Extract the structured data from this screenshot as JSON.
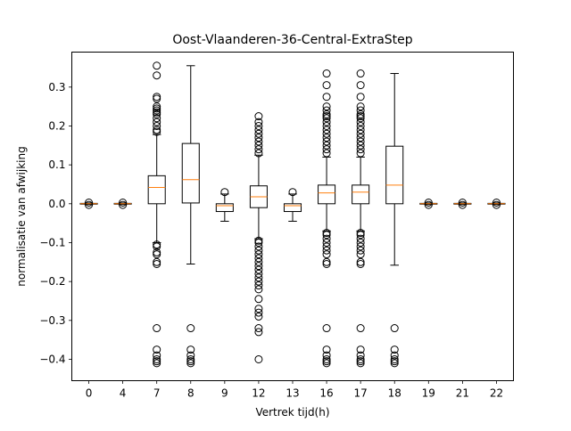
{
  "chart_data": {
    "type": "boxplot",
    "title": "Oost-Vlaanderen-36-Central-ExtraStep",
    "xlabel": "Vertrek tijd(h)",
    "ylabel": "normalisatie van afwijking",
    "ylim": [
      -0.455,
      0.39
    ],
    "yticks": [
      -0.4,
      -0.3,
      -0.2,
      -0.1,
      0.0,
      0.1,
      0.2,
      0.3
    ],
    "ytick_labels": [
      "−0.4",
      "−0.3",
      "−0.2",
      "−0.1",
      "0.0",
      "0.1",
      "0.2",
      "0.3"
    ],
    "box_color": "#000000",
    "median_color": "#ff7f0e",
    "boxes": [
      {
        "label": "0",
        "whislo": -0.002,
        "q1": -0.001,
        "med": 0.0,
        "q3": 0.001,
        "whishi": 0.002,
        "fliers": [
          -0.003,
          0.003
        ]
      },
      {
        "label": "4",
        "whislo": -0.002,
        "q1": -0.001,
        "med": 0.0,
        "q3": 0.001,
        "whishi": 0.002,
        "fliers": [
          -0.003,
          0.003
        ]
      },
      {
        "label": "7",
        "whislo": -0.1,
        "q1": 0.0,
        "med": 0.042,
        "q3": 0.072,
        "whishi": 0.178,
        "fliers": [
          0.355,
          0.33,
          0.275,
          0.27,
          0.25,
          0.245,
          0.24,
          0.235,
          0.23,
          0.22,
          0.21,
          0.2,
          0.19,
          0.185,
          -0.105,
          -0.11,
          -0.125,
          -0.13,
          -0.15,
          -0.155,
          -0.32,
          -0.375,
          -0.39,
          -0.4,
          -0.405,
          -0.41
        ]
      },
      {
        "label": "8",
        "whislo": -0.155,
        "q1": 0.002,
        "med": 0.062,
        "q3": 0.155,
        "whishi": 0.355,
        "fliers": [
          -0.32,
          -0.375,
          -0.39,
          -0.4,
          -0.405,
          -0.41
        ]
      },
      {
        "label": "9",
        "whislo": -0.045,
        "q1": -0.02,
        "med": -0.005,
        "q3": 0.0,
        "whishi": 0.025,
        "fliers": [
          0.03
        ]
      },
      {
        "label": "12",
        "whislo": -0.09,
        "q1": -0.01,
        "med": 0.018,
        "q3": 0.046,
        "whishi": 0.125,
        "fliers": [
          0.225,
          0.21,
          0.2,
          0.19,
          0.18,
          0.17,
          0.16,
          0.15,
          0.14,
          0.13,
          -0.095,
          -0.1,
          -0.11,
          -0.12,
          -0.13,
          -0.14,
          -0.15,
          -0.16,
          -0.17,
          -0.18,
          -0.19,
          -0.2,
          -0.21,
          -0.22,
          -0.245,
          -0.27,
          -0.28,
          -0.29,
          -0.32,
          -0.33,
          -0.4
        ]
      },
      {
        "label": "13",
        "whislo": -0.045,
        "q1": -0.02,
        "med": -0.005,
        "q3": 0.0,
        "whishi": 0.025,
        "fliers": [
          0.03
        ]
      },
      {
        "label": "16",
        "whislo": -0.07,
        "q1": 0.0,
        "med": 0.028,
        "q3": 0.048,
        "whishi": 0.12,
        "fliers": [
          0.335,
          0.305,
          0.275,
          0.25,
          0.24,
          0.23,
          0.225,
          0.22,
          0.21,
          0.2,
          0.19,
          0.18,
          0.17,
          0.16,
          0.15,
          0.14,
          0.13,
          -0.075,
          -0.08,
          -0.09,
          -0.1,
          -0.11,
          -0.12,
          -0.13,
          -0.15,
          -0.155,
          -0.32,
          -0.375,
          -0.39,
          -0.4,
          -0.405,
          -0.41
        ]
      },
      {
        "label": "17",
        "whislo": -0.07,
        "q1": 0.0,
        "med": 0.03,
        "q3": 0.048,
        "whishi": 0.12,
        "fliers": [
          0.335,
          0.305,
          0.275,
          0.25,
          0.24,
          0.23,
          0.225,
          0.22,
          0.21,
          0.2,
          0.19,
          0.18,
          0.17,
          0.16,
          0.15,
          0.14,
          0.13,
          -0.075,
          -0.08,
          -0.09,
          -0.1,
          -0.11,
          -0.12,
          -0.13,
          -0.15,
          -0.155,
          -0.32,
          -0.375,
          -0.39,
          -0.4,
          -0.405,
          -0.41
        ]
      },
      {
        "label": "18",
        "whislo": -0.158,
        "q1": 0.0,
        "med": 0.048,
        "q3": 0.148,
        "whishi": 0.335,
        "fliers": [
          -0.32,
          -0.375,
          -0.39,
          -0.4,
          -0.405,
          -0.41
        ]
      },
      {
        "label": "19",
        "whislo": -0.002,
        "q1": -0.001,
        "med": 0.0,
        "q3": 0.001,
        "whishi": 0.002,
        "fliers": [
          -0.003,
          0.003
        ]
      },
      {
        "label": "21",
        "whislo": -0.002,
        "q1": -0.001,
        "med": 0.0,
        "q3": 0.001,
        "whishi": 0.002,
        "fliers": [
          -0.003,
          0.003
        ]
      },
      {
        "label": "22",
        "whislo": -0.002,
        "q1": -0.001,
        "med": 0.0,
        "q3": 0.001,
        "whishi": 0.002,
        "fliers": [
          -0.003,
          0.003
        ]
      }
    ]
  }
}
